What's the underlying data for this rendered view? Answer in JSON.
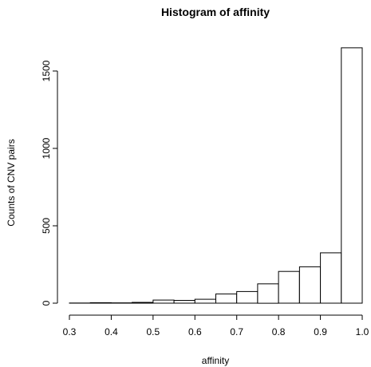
{
  "chart_data": {
    "type": "bar",
    "title": "Histogram of affinity",
    "xlabel": "affinity",
    "ylabel": "Counts of CNV pairs",
    "xlim": [
      0.3,
      1.0
    ],
    "ylim": [
      0,
      1650
    ],
    "x_ticks": [
      "0.3",
      "0.4",
      "0.5",
      "0.6",
      "0.7",
      "0.8",
      "0.9",
      "1.0"
    ],
    "y_ticks": [
      "0",
      "500",
      "1000",
      "1500"
    ],
    "bins": [
      {
        "start": 0.3,
        "end": 0.35,
        "count": 1
      },
      {
        "start": 0.35,
        "end": 0.4,
        "count": 3
      },
      {
        "start": 0.4,
        "end": 0.45,
        "count": 2
      },
      {
        "start": 0.45,
        "end": 0.5,
        "count": 5
      },
      {
        "start": 0.5,
        "end": 0.55,
        "count": 20
      },
      {
        "start": 0.55,
        "end": 0.6,
        "count": 18
      },
      {
        "start": 0.6,
        "end": 0.65,
        "count": 25
      },
      {
        "start": 0.65,
        "end": 0.7,
        "count": 60
      },
      {
        "start": 0.7,
        "end": 0.75,
        "count": 75
      },
      {
        "start": 0.75,
        "end": 0.8,
        "count": 125
      },
      {
        "start": 0.8,
        "end": 0.85,
        "count": 205
      },
      {
        "start": 0.85,
        "end": 0.9,
        "count": 235
      },
      {
        "start": 0.9,
        "end": 0.95,
        "count": 325
      },
      {
        "start": 0.95,
        "end": 1.0,
        "count": 1650
      }
    ],
    "grid": false,
    "bar_fill": "#ffffff",
    "bar_stroke": "#000000"
  }
}
